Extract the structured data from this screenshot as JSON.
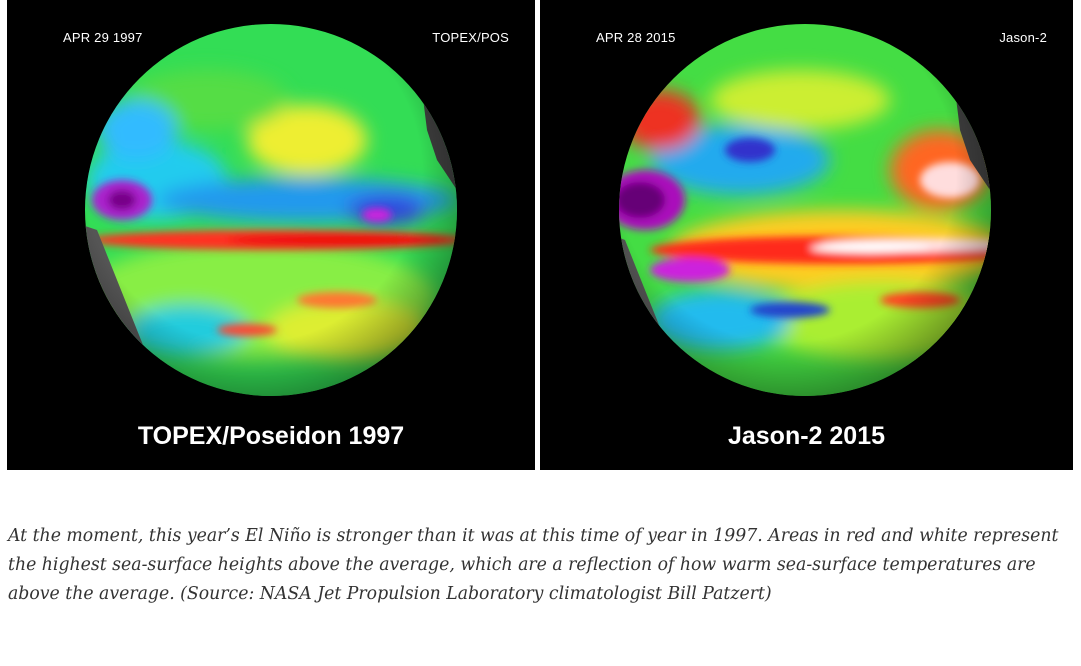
{
  "panels": [
    {
      "date": "APR 29  1997",
      "satellite": "TOPEX/POS",
      "caption": "TOPEX/Poseidon 1997"
    },
    {
      "date": "APR 28  2015",
      "satellite": "Jason-2",
      "caption": "Jason-2 2015"
    }
  ],
  "caption": " At the moment, this year’s El Niño is stronger than it was at this time of year in 1997. Areas in red and white represent the highest sea-surface heights above the average, which are a reflection of how warm sea-surface temperatures are above the average. (Source: NASA Jet Propulsion Laboratory climatologist Bill Patzert)"
}
